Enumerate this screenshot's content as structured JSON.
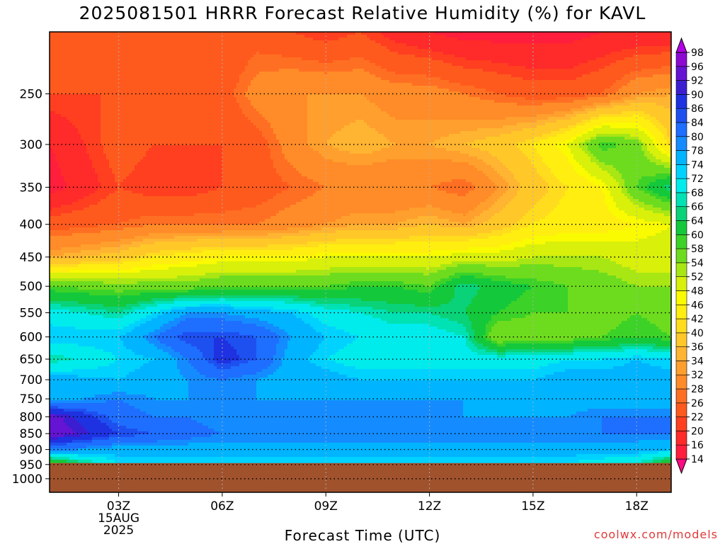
{
  "title": "2025081501 HRRR Forecast Relative Humidity (%) for KAVL",
  "credit": "coolwx.com/models",
  "chart_data": {
    "type": "heatmap",
    "title": "2025081501 HRRR Forecast Relative Humidity (%) for KAVL",
    "xlabel": "Forecast Time (UTC)",
    "ylabel": "",
    "x_ticks": [
      {
        "hour": 3,
        "label": "03Z",
        "sublabel1": "15AUG",
        "sublabel2": "2025"
      },
      {
        "hour": 6,
        "label": "06Z",
        "sublabel1": "",
        "sublabel2": ""
      },
      {
        "hour": 9,
        "label": "09Z",
        "sublabel1": "",
        "sublabel2": ""
      },
      {
        "hour": 12,
        "label": "12Z",
        "sublabel1": "",
        "sublabel2": ""
      },
      {
        "hour": 15,
        "label": "15Z",
        "sublabel1": "",
        "sublabel2": ""
      },
      {
        "hour": 18,
        "label": "18Z",
        "sublabel1": "",
        "sublabel2": ""
      }
    ],
    "x_range": [
      1,
      19
    ],
    "y_ticks": [
      250,
      300,
      350,
      400,
      450,
      500,
      550,
      600,
      650,
      700,
      750,
      800,
      850,
      900,
      950,
      1000
    ],
    "y_range": [
      200,
      1050
    ],
    "y_scale": "log-pressure",
    "grid": "dotted",
    "surface_pressure": 945,
    "surface_color": "#a0522d",
    "columns_hours": [
      1,
      3,
      4,
      5,
      6,
      7,
      8,
      9,
      10,
      11,
      12,
      13,
      14,
      15,
      16,
      17,
      18,
      19
    ],
    "profile_levels": [
      200,
      250,
      300,
      350,
      400,
      450,
      500,
      550,
      600,
      650,
      700,
      750,
      800,
      850,
      900,
      945
    ],
    "profiles": [
      [
        22,
        22,
        16,
        14,
        24,
        34,
        58,
        70,
        74,
        66,
        76,
        76,
        94,
        96,
        80,
        58
      ],
      [
        22,
        22,
        24,
        22,
        26,
        38,
        56,
        66,
        74,
        72,
        74,
        80,
        82,
        86,
        76,
        72
      ],
      [
        24,
        24,
        22,
        20,
        28,
        42,
        56,
        72,
        80,
        74,
        76,
        78,
        80,
        84,
        76,
        72
      ],
      [
        22,
        24,
        22,
        20,
        28,
        44,
        56,
        78,
        86,
        80,
        78,
        78,
        80,
        82,
        76,
        72
      ],
      [
        22,
        24,
        22,
        22,
        28,
        46,
        58,
        78,
        86,
        88,
        80,
        78,
        78,
        80,
        76,
        72
      ],
      [
        24,
        30,
        24,
        24,
        28,
        46,
        58,
        76,
        84,
        84,
        78,
        78,
        78,
        80,
        76,
        72
      ],
      [
        22,
        32,
        30,
        26,
        30,
        46,
        58,
        74,
        78,
        76,
        76,
        78,
        78,
        80,
        76,
        72
      ],
      [
        20,
        32,
        34,
        28,
        32,
        48,
        58,
        70,
        74,
        72,
        76,
        78,
        78,
        80,
        76,
        72
      ],
      [
        22,
        32,
        36,
        28,
        34,
        48,
        60,
        68,
        72,
        70,
        74,
        78,
        78,
        80,
        76,
        72
      ],
      [
        18,
        30,
        34,
        28,
        34,
        48,
        60,
        66,
        70,
        70,
        74,
        78,
        78,
        80,
        76,
        72
      ],
      [
        16,
        30,
        34,
        28,
        36,
        48,
        58,
        66,
        70,
        70,
        74,
        78,
        78,
        80,
        76,
        72
      ],
      [
        14,
        28,
        36,
        26,
        34,
        50,
        66,
        64,
        68,
        70,
        74,
        78,
        78,
        80,
        76,
        72
      ],
      [
        14,
        26,
        38,
        32,
        38,
        50,
        62,
        60,
        54,
        70,
        74,
        76,
        78,
        80,
        76,
        72
      ],
      [
        14,
        24,
        42,
        38,
        42,
        52,
        60,
        58,
        56,
        70,
        74,
        76,
        78,
        80,
        76,
        72
      ],
      [
        14,
        24,
        48,
        42,
        44,
        52,
        58,
        58,
        56,
        72,
        76,
        76,
        78,
        80,
        76,
        72
      ],
      [
        16,
        26,
        60,
        46,
        44,
        52,
        56,
        56,
        58,
        72,
        76,
        76,
        80,
        80,
        76,
        70
      ],
      [
        16,
        32,
        56,
        58,
        46,
        50,
        54,
        58,
        60,
        74,
        76,
        76,
        80,
        80,
        76,
        68
      ],
      [
        16,
        34,
        40,
        66,
        48,
        50,
        54,
        56,
        58,
        72,
        76,
        76,
        80,
        80,
        74,
        60
      ]
    ],
    "colorbar": {
      "levels": [
        14,
        16,
        20,
        22,
        26,
        28,
        32,
        34,
        36,
        40,
        42,
        46,
        48,
        52,
        54,
        58,
        60,
        64,
        66,
        68,
        72,
        74,
        78,
        80,
        84,
        86,
        90,
        92,
        96,
        98
      ],
      "colors": [
        "#ff0a82",
        "#ff1e3c",
        "#ff2a2a",
        "#ff3f20",
        "#ff5a1e",
        "#ff6f23",
        "#ff8c28",
        "#ff9f2d",
        "#ffb432",
        "#ffc828",
        "#ffdc1e",
        "#ffee10",
        "#fafa00",
        "#d8f00a",
        "#a8e614",
        "#6edc1e",
        "#3cd228",
        "#14c83c",
        "#0ad278",
        "#00e1b4",
        "#00ecec",
        "#00d2ff",
        "#00b4ff",
        "#148cff",
        "#1e6eff",
        "#1e50f0",
        "#1e32e1",
        "#3c1ed2",
        "#6414d2",
        "#8c0ad2",
        "#b400e6"
      ]
    }
  }
}
